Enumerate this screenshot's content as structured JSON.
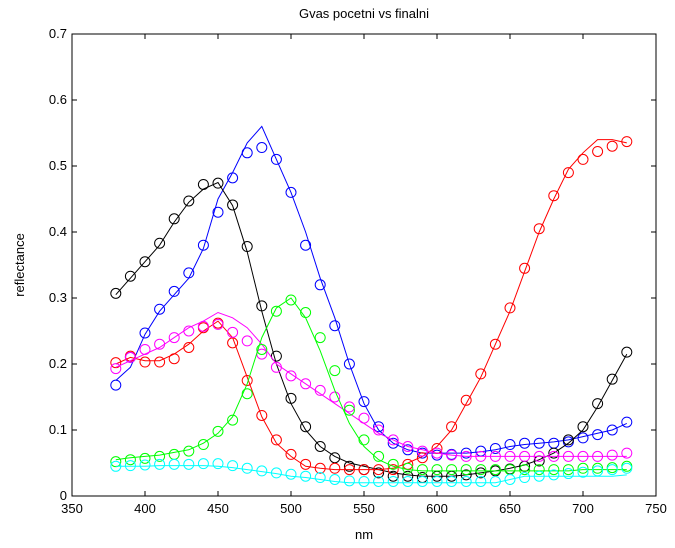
{
  "chart_data": {
    "type": "line",
    "title": "Gvas pocetni vs finalni",
    "xlabel": "nm",
    "ylabel": "reflectance",
    "xlim": [
      350,
      750
    ],
    "ylim": [
      0,
      0.7
    ],
    "xticks": [
      350,
      400,
      450,
      500,
      550,
      600,
      650,
      700,
      750
    ],
    "yticks": [
      0,
      0.1,
      0.2,
      0.3,
      0.4,
      0.5,
      0.6,
      0.7
    ],
    "xtick_labels": [
      "350",
      "400",
      "450",
      "500",
      "550",
      "600",
      "650",
      "700",
      "750"
    ],
    "ytick_labels": [
      "0",
      "0.1",
      "0.2",
      "0.3",
      "0.4",
      "0.5",
      "0.6",
      "0.7"
    ],
    "grid": false,
    "legend": false,
    "x": [
      380,
      390,
      400,
      410,
      420,
      430,
      440,
      450,
      460,
      470,
      480,
      490,
      500,
      510,
      520,
      530,
      540,
      550,
      560,
      570,
      580,
      590,
      600,
      610,
      620,
      630,
      640,
      650,
      660,
      670,
      680,
      690,
      700,
      710,
      720,
      730
    ],
    "series": [
      {
        "color": "#0000ff",
        "line": [
          0.175,
          0.195,
          0.245,
          0.28,
          0.305,
          0.33,
          0.375,
          0.45,
          0.49,
          0.535,
          0.56,
          0.51,
          0.46,
          0.4,
          0.33,
          0.27,
          0.2,
          0.14,
          0.1,
          0.08,
          0.07,
          0.065,
          0.065,
          0.065,
          0.065,
          0.067,
          0.07,
          0.075,
          0.078,
          0.08,
          0.082,
          0.085,
          0.09,
          0.095,
          0.1,
          0.11
        ],
        "markers": [
          0.168,
          0.21,
          0.247,
          0.283,
          0.31,
          0.338,
          0.38,
          0.43,
          0.482,
          0.52,
          0.528,
          0.51,
          0.46,
          0.38,
          0.32,
          0.258,
          0.2,
          0.143,
          0.105,
          0.08,
          0.07,
          0.065,
          0.062,
          0.063,
          0.065,
          0.068,
          0.072,
          0.078,
          0.08,
          0.08,
          0.08,
          0.082,
          0.088,
          0.093,
          0.1,
          0.112
        ]
      },
      {
        "color": "#000000",
        "line": [
          0.305,
          0.33,
          0.355,
          0.38,
          0.415,
          0.445,
          0.465,
          0.475,
          0.44,
          0.37,
          0.28,
          0.2,
          0.14,
          0.1,
          0.075,
          0.06,
          0.05,
          0.045,
          0.04,
          0.035,
          0.032,
          0.03,
          0.03,
          0.03,
          0.032,
          0.035,
          0.038,
          0.042,
          0.047,
          0.055,
          0.065,
          0.08,
          0.1,
          0.135,
          0.175,
          0.215
        ],
        "markers": [
          0.307,
          0.333,
          0.355,
          0.383,
          0.42,
          0.447,
          0.472,
          0.474,
          0.441,
          0.378,
          0.288,
          0.212,
          0.148,
          0.105,
          0.075,
          0.058,
          0.045,
          0.04,
          0.035,
          0.03,
          0.03,
          0.028,
          0.03,
          0.03,
          0.032,
          0.035,
          0.038,
          0.041,
          0.045,
          0.053,
          0.065,
          0.085,
          0.105,
          0.14,
          0.177,
          0.218
        ]
      },
      {
        "color": "#ff0000",
        "line": [
          0.2,
          0.21,
          0.205,
          0.205,
          0.215,
          0.23,
          0.25,
          0.265,
          0.24,
          0.18,
          0.12,
          0.08,
          0.06,
          0.045,
          0.042,
          0.04,
          0.04,
          0.04,
          0.04,
          0.042,
          0.05,
          0.06,
          0.075,
          0.1,
          0.14,
          0.18,
          0.23,
          0.28,
          0.34,
          0.4,
          0.45,
          0.495,
          0.52,
          0.54,
          0.54,
          0.535
        ],
        "markers": [
          0.202,
          0.212,
          0.203,
          0.203,
          0.208,
          0.225,
          0.255,
          0.262,
          0.232,
          0.175,
          0.122,
          0.085,
          0.063,
          0.048,
          0.042,
          0.042,
          0.04,
          0.04,
          0.04,
          0.04,
          0.048,
          0.058,
          0.072,
          0.105,
          0.145,
          0.185,
          0.23,
          0.285,
          0.345,
          0.405,
          0.455,
          0.49,
          0.51,
          0.522,
          0.53,
          0.537
        ]
      },
      {
        "color": "#ff00ff",
        "line": [
          0.195,
          0.205,
          0.215,
          0.225,
          0.24,
          0.255,
          0.265,
          0.278,
          0.27,
          0.255,
          0.23,
          0.2,
          0.185,
          0.17,
          0.155,
          0.14,
          0.125,
          0.11,
          0.095,
          0.085,
          0.075,
          0.07,
          0.065,
          0.062,
          0.06,
          0.06,
          0.06,
          0.06,
          0.06,
          0.06,
          0.06,
          0.06,
          0.06,
          0.06,
          0.06,
          0.06
        ],
        "markers": [
          0.193,
          0.21,
          0.222,
          0.23,
          0.24,
          0.25,
          0.257,
          0.26,
          0.248,
          0.235,
          0.215,
          0.195,
          0.182,
          0.17,
          0.16,
          0.15,
          0.135,
          0.118,
          0.1,
          0.085,
          0.075,
          0.068,
          0.065,
          0.062,
          0.06,
          0.06,
          0.06,
          0.06,
          0.06,
          0.06,
          0.06,
          0.06,
          0.06,
          0.06,
          0.062,
          0.065
        ]
      },
      {
        "color": "#00ff00",
        "line": [
          0.055,
          0.058,
          0.06,
          0.062,
          0.066,
          0.07,
          0.08,
          0.095,
          0.12,
          0.17,
          0.24,
          0.285,
          0.3,
          0.27,
          0.22,
          0.16,
          0.11,
          0.075,
          0.055,
          0.045,
          0.04,
          0.038,
          0.038,
          0.038,
          0.038,
          0.038,
          0.038,
          0.038,
          0.038,
          0.038,
          0.038,
          0.038,
          0.04,
          0.04,
          0.04,
          0.04
        ],
        "markers": [
          0.052,
          0.055,
          0.057,
          0.06,
          0.063,
          0.068,
          0.078,
          0.098,
          0.115,
          0.155,
          0.222,
          0.28,
          0.297,
          0.278,
          0.24,
          0.19,
          0.13,
          0.085,
          0.06,
          0.048,
          0.042,
          0.04,
          0.04,
          0.04,
          0.04,
          0.04,
          0.04,
          0.04,
          0.04,
          0.04,
          0.04,
          0.04,
          0.042,
          0.042,
          0.043,
          0.045
        ]
      },
      {
        "color": "#00ffff",
        "line": [
          0.045,
          0.045,
          0.045,
          0.046,
          0.046,
          0.046,
          0.046,
          0.045,
          0.043,
          0.04,
          0.037,
          0.034,
          0.03,
          0.028,
          0.025,
          0.022,
          0.02,
          0.02,
          0.02,
          0.02,
          0.02,
          0.02,
          0.02,
          0.02,
          0.02,
          0.02,
          0.02,
          0.025,
          0.03,
          0.03,
          0.03,
          0.03,
          0.03,
          0.03,
          0.03,
          0.032
        ],
        "markers": [
          0.045,
          0.046,
          0.047,
          0.048,
          0.048,
          0.048,
          0.049,
          0.049,
          0.046,
          0.042,
          0.038,
          0.035,
          0.033,
          0.03,
          0.028,
          0.025,
          0.023,
          0.022,
          0.022,
          0.022,
          0.022,
          0.022,
          0.022,
          0.022,
          0.022,
          0.022,
          0.022,
          0.025,
          0.028,
          0.03,
          0.032,
          0.034,
          0.036,
          0.038,
          0.04,
          0.042
        ]
      }
    ]
  }
}
